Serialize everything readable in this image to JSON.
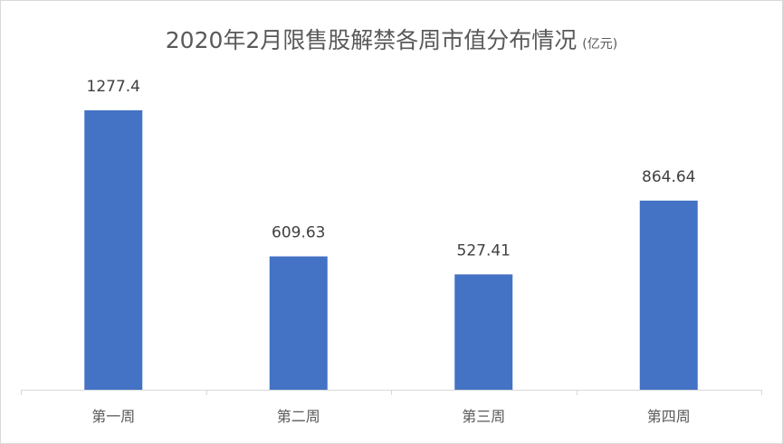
{
  "chart_data": {
    "type": "bar",
    "title": "2020年2月限售股解禁各周市值分布情况",
    "title_unit": "(亿元)",
    "categories": [
      "第一周",
      "第二周",
      "第三周",
      "第四周"
    ],
    "values": [
      1277.4,
      609.63,
      527.41,
      864.64
    ],
    "data_labels": [
      "1277.4",
      "609.63",
      "527.41",
      "864.64"
    ],
    "xlabel": "",
    "ylabel": "",
    "ylim": [
      0,
      1400
    ],
    "grid": false,
    "legend": "none",
    "bar_color": "#4472C4"
  }
}
